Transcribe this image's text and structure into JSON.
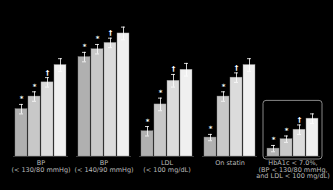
{
  "chart_data": {
    "type": "bar",
    "categories": [
      "BP\n(< 130/80 mmHg)",
      "BP\n(< 140/90 mmHg)",
      "LDL\n(< 100 mg/dL)",
      "On statin",
      "HbA1c < 7.0%,\n(BP < 130/80 mmHg,\nand LDL < 100 mg/dL)"
    ],
    "series": [
      {
        "color": "#b0b0b0",
        "values": [
          30,
          63,
          16,
          12,
          5
        ],
        "errors": [
          3,
          3,
          3,
          2,
          2
        ],
        "annotation": "*"
      },
      {
        "color": "#c8c8c8",
        "values": [
          38,
          68,
          33,
          38,
          11
        ],
        "errors": [
          3,
          3,
          4,
          3,
          2
        ],
        "annotation": "*"
      },
      {
        "color": "#dcdcdc",
        "values": [
          47,
          72,
          48,
          50,
          17
        ],
        "errors": [
          3,
          3,
          4,
          3,
          3
        ],
        "annotation": "†"
      },
      {
        "color": "#f0f0f0",
        "values": [
          58,
          78,
          55,
          58,
          24
        ],
        "errors": [
          4,
          4,
          4,
          4,
          3
        ]
      }
    ],
    "boxed": [
      false,
      false,
      false,
      false,
      true
    ],
    "ylim": [
      0,
      90
    ],
    "tick_labels": "x",
    "grid": false
  }
}
